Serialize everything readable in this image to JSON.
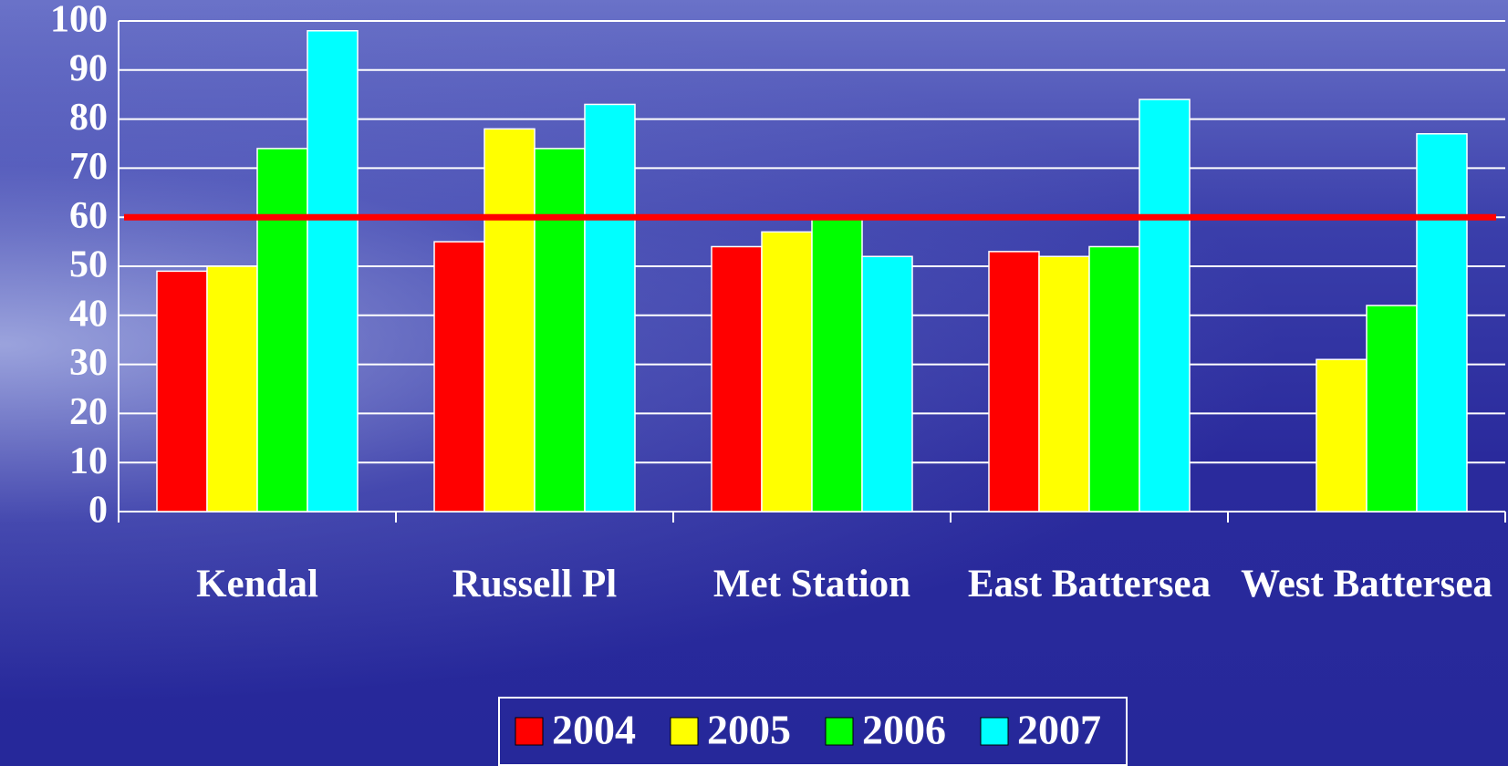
{
  "chart_data": {
    "type": "bar",
    "categories": [
      "Kendal",
      "Russell Pl",
      "Met Station",
      "East Battersea",
      "West Battersea"
    ],
    "series": [
      {
        "name": "2004",
        "color": "#ff0000",
        "values": [
          49,
          55,
          54,
          53,
          null
        ]
      },
      {
        "name": "2005",
        "color": "#ffff00",
        "values": [
          50,
          78,
          57,
          52,
          31
        ]
      },
      {
        "name": "2006",
        "color": "#00ff00",
        "values": [
          74,
          74,
          60,
          54,
          42
        ]
      },
      {
        "name": "2007",
        "color": "#00ffff",
        "values": [
          98,
          83,
          52,
          84,
          77
        ]
      }
    ],
    "ylim": [
      0,
      100
    ],
    "yticks": [
      0,
      10,
      20,
      30,
      40,
      50,
      60,
      70,
      80,
      90,
      100
    ],
    "grid": true,
    "legend": "bottom",
    "reference_line": {
      "value": 60,
      "color": "#ff0000"
    }
  }
}
